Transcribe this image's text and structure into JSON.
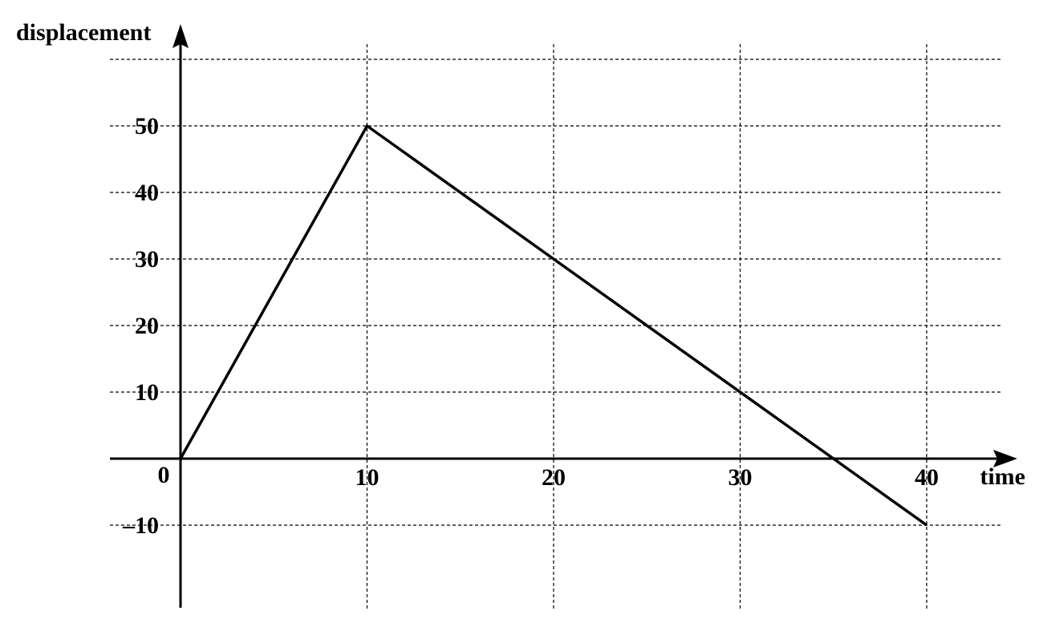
{
  "chart_data": {
    "type": "line",
    "title": "",
    "xlabel": "time",
    "ylabel": "displacement",
    "xlim": [
      -4,
      47
    ],
    "ylim": [
      -22,
      63
    ],
    "x_ticks": [
      10,
      20,
      30,
      40
    ],
    "y_ticks": [
      -10,
      10,
      20,
      30,
      40,
      50
    ],
    "x_tick_labels": [
      "10",
      "20",
      "30",
      "40"
    ],
    "y_tick_labels": [
      "–10",
      "10",
      "20",
      "30",
      "40",
      "50"
    ],
    "origin_label": "0",
    "grid": true,
    "grid_x": [
      10,
      20,
      30,
      40
    ],
    "grid_y": [
      -10,
      10,
      20,
      30,
      40,
      50,
      60
    ],
    "series": [
      {
        "x": [
          0,
          10,
          40
        ],
        "y": [
          0,
          50,
          -10
        ]
      }
    ]
  }
}
